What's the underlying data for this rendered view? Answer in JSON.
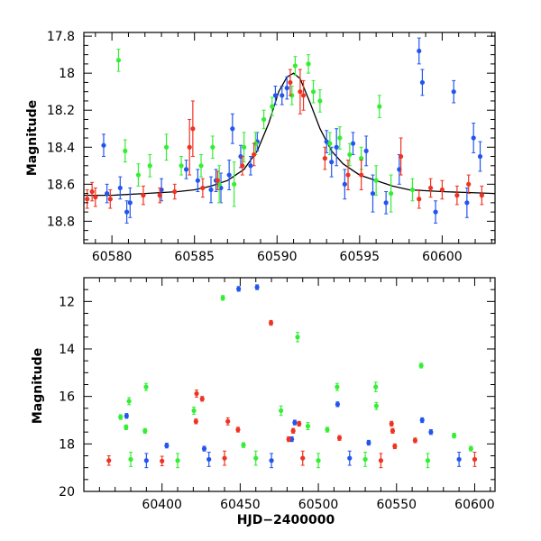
{
  "chart_data": [
    {
      "type": "scatter",
      "panel": "top",
      "title": "",
      "xlabel": "",
      "ylabel": "Magnitude",
      "xlim": [
        60578.3,
        60603.2
      ],
      "ylim": [
        18.92,
        17.78
      ],
      "y_inverted": true,
      "x_ticks": [
        60580,
        60585,
        60590,
        60595,
        60600
      ],
      "x_tick_labels": [
        "60580",
        "60585",
        "60590",
        "60595",
        "60600"
      ],
      "y_ticks": [
        17.8,
        18,
        18.2,
        18.4,
        18.6,
        18.8
      ],
      "y_tick_labels": [
        "17.8",
        "18",
        "18.2",
        "18.4",
        "18.6",
        "18.8"
      ],
      "model_curve": {
        "color": "#000000",
        "points": [
          [
            60578.3,
            18.66
          ],
          [
            60580,
            18.66
          ],
          [
            60582,
            18.65
          ],
          [
            60584,
            18.64
          ],
          [
            60585,
            18.63
          ],
          [
            60586,
            18.61
          ],
          [
            60587,
            18.58
          ],
          [
            60588,
            18.52
          ],
          [
            60588.8,
            18.42
          ],
          [
            60589.5,
            18.27
          ],
          [
            60590.1,
            18.1
          ],
          [
            60590.6,
            18.02
          ],
          [
            60591.0,
            18.0
          ],
          [
            60591.4,
            18.03
          ],
          [
            60592.0,
            18.16
          ],
          [
            60592.6,
            18.3
          ],
          [
            60593.3,
            18.42
          ],
          [
            60594.0,
            18.49
          ],
          [
            60595,
            18.55
          ],
          [
            60596,
            18.58
          ],
          [
            60597,
            18.61
          ],
          [
            60598,
            18.63
          ],
          [
            60600,
            18.64
          ],
          [
            60603.2,
            18.65
          ]
        ]
      },
      "series": [
        {
          "color": "#2255ee",
          "points": [
            [
              60579.5,
              18.39,
              0.06
            ],
            [
              60579.7,
              18.65,
              0.05
            ],
            [
              60580.5,
              18.62,
              0.06
            ],
            [
              60580.9,
              18.75,
              0.06
            ],
            [
              60581.1,
              18.7,
              0.08
            ],
            [
              60583.0,
              18.63,
              0.06
            ],
            [
              60584.5,
              18.52,
              0.05
            ],
            [
              60585.2,
              18.58,
              0.06
            ],
            [
              60586.0,
              18.63,
              0.07
            ],
            [
              60586.3,
              18.58,
              0.06
            ],
            [
              60586.6,
              18.62,
              0.08
            ],
            [
              60587.1,
              18.55,
              0.08
            ],
            [
              60587.3,
              18.3,
              0.08
            ],
            [
              60587.8,
              18.45,
              0.06
            ],
            [
              60588.4,
              18.5,
              0.05
            ],
            [
              60588.8,
              18.37,
              0.05
            ],
            [
              60589.9,
              18.12,
              0.05
            ],
            [
              60590.3,
              18.12,
              0.05
            ],
            [
              60590.6,
              18.08,
              0.06
            ],
            [
              60593.0,
              18.37,
              0.06
            ],
            [
              60593.3,
              18.48,
              0.08
            ],
            [
              60593.6,
              18.4,
              0.1
            ],
            [
              60594.1,
              18.6,
              0.08
            ],
            [
              60594.6,
              18.38,
              0.06
            ],
            [
              60595.4,
              18.42,
              0.08
            ],
            [
              60595.8,
              18.65,
              0.1
            ],
            [
              60596.6,
              18.7,
              0.06
            ],
            [
              60597.4,
              18.52,
              0.08
            ],
            [
              60598.6,
              17.88,
              0.07
            ],
            [
              60598.8,
              18.05,
              0.07
            ],
            [
              60599.6,
              18.75,
              0.06
            ],
            [
              60600.7,
              18.1,
              0.06
            ],
            [
              60601.5,
              18.7,
              0.08
            ],
            [
              60601.9,
              18.35,
              0.08
            ],
            [
              60602.3,
              18.45,
              0.08
            ]
          ]
        },
        {
          "color": "#33ee33",
          "points": [
            [
              60580.4,
              17.93,
              0.06
            ],
            [
              60580.8,
              18.42,
              0.06
            ],
            [
              60581.6,
              18.55,
              0.06
            ],
            [
              60582.3,
              18.5,
              0.06
            ],
            [
              60583.3,
              18.4,
              0.07
            ],
            [
              60584.2,
              18.5,
              0.05
            ],
            [
              60585.4,
              18.5,
              0.06
            ],
            [
              60586.1,
              18.4,
              0.06
            ],
            [
              60586.5,
              18.6,
              0.1
            ],
            [
              60587.4,
              18.6,
              0.12
            ],
            [
              60588.0,
              18.4,
              0.08
            ],
            [
              60588.7,
              18.38,
              0.06
            ],
            [
              60589.2,
              18.25,
              0.05
            ],
            [
              60589.7,
              18.18,
              0.05
            ],
            [
              60590.9,
              18.12,
              0.05
            ],
            [
              60591.1,
              17.96,
              0.05
            ],
            [
              60591.9,
              17.95,
              0.05
            ],
            [
              60592.2,
              18.1,
              0.06
            ],
            [
              60592.6,
              18.15,
              0.06
            ],
            [
              60593.2,
              18.38,
              0.06
            ],
            [
              60593.8,
              18.35,
              0.06
            ],
            [
              60594.4,
              18.44,
              0.06
            ],
            [
              60595.1,
              18.46,
              0.06
            ],
            [
              60596.0,
              18.58,
              0.08
            ],
            [
              60596.2,
              18.18,
              0.06
            ],
            [
              60596.9,
              18.65,
              0.1
            ],
            [
              60598.2,
              18.63,
              0.06
            ]
          ]
        },
        {
          "color": "#ee3322",
          "points": [
            [
              60578.5,
              18.68,
              0.05
            ],
            [
              60578.8,
              18.64,
              0.05
            ],
            [
              60579.0,
              18.67,
              0.05
            ],
            [
              60579.9,
              18.68,
              0.05
            ],
            [
              60581.9,
              18.66,
              0.05
            ],
            [
              60582.9,
              18.66,
              0.04
            ],
            [
              60583.8,
              18.64,
              0.04
            ],
            [
              60584.7,
              18.4,
              0.15
            ],
            [
              60584.9,
              18.3,
              0.15
            ],
            [
              60585.5,
              18.62,
              0.05
            ],
            [
              60586.4,
              18.58,
              0.05
            ],
            [
              60587.9,
              18.5,
              0.05
            ],
            [
              60588.6,
              18.44,
              0.06
            ],
            [
              60590.8,
              18.05,
              0.07
            ],
            [
              60591.4,
              18.1,
              0.12
            ],
            [
              60591.6,
              18.12,
              0.08
            ],
            [
              60592.9,
              18.46,
              0.06
            ],
            [
              60594.3,
              18.55,
              0.08
            ],
            [
              60595.1,
              18.55,
              0.08
            ],
            [
              60597.5,
              18.45,
              0.1
            ],
            [
              60598.6,
              18.68,
              0.05
            ],
            [
              60599.3,
              18.62,
              0.05
            ],
            [
              60600.0,
              18.63,
              0.05
            ],
            [
              60600.9,
              18.66,
              0.05
            ],
            [
              60601.6,
              18.6,
              0.05
            ],
            [
              60602.4,
              18.66,
              0.05
            ]
          ]
        }
      ]
    },
    {
      "type": "scatter",
      "panel": "bottom",
      "title": "",
      "xlabel": "HJD−2400000",
      "ylabel": "Magnitude",
      "xlim": [
        60350,
        60613
      ],
      "ylim": [
        20.0,
        11.0
      ],
      "y_inverted": true,
      "x_ticks": [
        60400,
        60450,
        60500,
        60550,
        60600
      ],
      "x_tick_labels": [
        "60400",
        "60450",
        "60500",
        "60550",
        "60600"
      ],
      "y_ticks": [
        12,
        14,
        16,
        18,
        20
      ],
      "y_tick_labels": [
        "12",
        "14",
        "16",
        "18",
        "20"
      ],
      "series": [
        {
          "color": "#33ee33",
          "points": [
            [
              60373.5,
              16.87,
              0.1
            ],
            [
              60378.9,
              16.2,
              0.15
            ],
            [
              60377.0,
              17.3,
              0.1
            ],
            [
              60389.8,
              15.6,
              0.15
            ],
            [
              60389.1,
              17.45,
              0.1
            ],
            [
              60420.4,
              16.6,
              0.15
            ],
            [
              60438.9,
              11.85,
              0.1
            ],
            [
              60452.1,
              18.05,
              0.1
            ],
            [
              60476.1,
              16.6,
              0.2
            ],
            [
              60486.7,
              13.5,
              0.2
            ],
            [
              60493.3,
              17.25,
              0.15
            ],
            [
              60505.7,
              17.4,
              0.1
            ],
            [
              60512.0,
              15.6,
              0.15
            ],
            [
              60536.7,
              15.6,
              0.2
            ],
            [
              60537.1,
              16.4,
              0.15
            ],
            [
              60565.8,
              14.7,
              0.1
            ],
            [
              60586.8,
              17.65,
              0.1
            ],
            [
              60597.6,
              18.2,
              0.1
            ],
            [
              60380.0,
              18.65,
              0.3
            ],
            [
              60410.0,
              18.7,
              0.3
            ],
            [
              60460.0,
              18.6,
              0.3
            ],
            [
              60500.0,
              18.7,
              0.3
            ],
            [
              60530.0,
              18.65,
              0.3
            ],
            [
              60570.0,
              18.7,
              0.3
            ]
          ]
        },
        {
          "color": "#2255ee",
          "points": [
            [
              60377.3,
              16.82,
              0.1
            ],
            [
              60449.0,
              11.47,
              0.1
            ],
            [
              60460.8,
              11.4,
              0.1
            ],
            [
              60484.9,
              17.1,
              0.1
            ],
            [
              60512.3,
              16.33,
              0.1
            ],
            [
              60532.2,
              17.95,
              0.1
            ],
            [
              60566.4,
              17.0,
              0.1
            ],
            [
              60572.0,
              17.5,
              0.1
            ],
            [
              60403.0,
              18.07,
              0.1
            ],
            [
              60427.0,
              18.2,
              0.1
            ],
            [
              60483.0,
              17.8,
              0.1
            ],
            [
              60390.0,
              18.7,
              0.3
            ],
            [
              60430.0,
              18.65,
              0.3
            ],
            [
              60470.0,
              18.7,
              0.3
            ],
            [
              60520.0,
              18.6,
              0.3
            ],
            [
              60590.0,
              18.65,
              0.3
            ]
          ]
        },
        {
          "color": "#ee3322",
          "points": [
            [
              60422.1,
              15.88,
              0.15
            ],
            [
              60425.7,
              16.1,
              0.1
            ],
            [
              60469.7,
              12.9,
              0.1
            ],
            [
              60421.7,
              17.05,
              0.1
            ],
            [
              60442.1,
              17.05,
              0.15
            ],
            [
              60448.6,
              17.4,
              0.1
            ],
            [
              60481.0,
              17.8,
              0.1
            ],
            [
              60483.9,
              17.45,
              0.1
            ],
            [
              60487.7,
              17.15,
              0.1
            ],
            [
              60513.5,
              17.75,
              0.1
            ],
            [
              60546.8,
              17.15,
              0.1
            ],
            [
              60547.5,
              17.45,
              0.1
            ],
            [
              60548.9,
              18.1,
              0.1
            ],
            [
              60561.9,
              17.85,
              0.1
            ],
            [
              60366.0,
              18.7,
              0.2
            ],
            [
              60400.0,
              18.72,
              0.2
            ],
            [
              60440.0,
              18.6,
              0.3
            ],
            [
              60490.0,
              18.6,
              0.3
            ],
            [
              60540.0,
              18.7,
              0.3
            ],
            [
              60600.0,
              18.65,
              0.3
            ]
          ]
        }
      ]
    }
  ]
}
